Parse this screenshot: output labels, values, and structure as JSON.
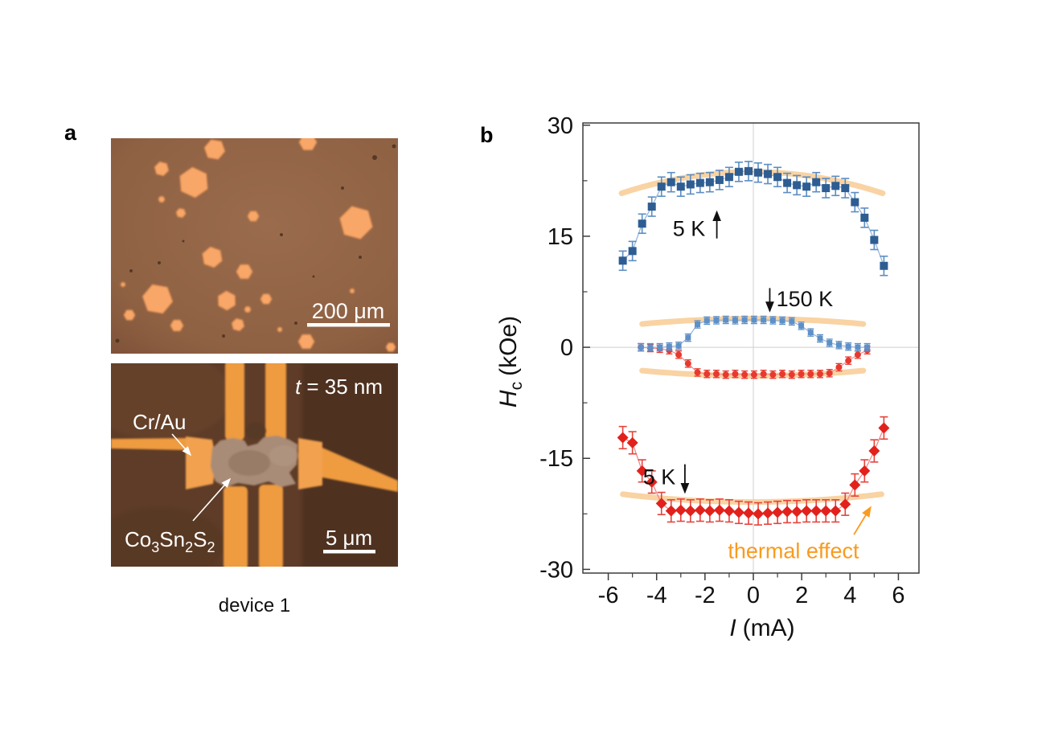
{
  "figure": {
    "panel_a_label": "a",
    "panel_b_label": "b",
    "caption": "device 1"
  },
  "panel_a": {
    "top_image": {
      "scale_bar_label": "200 μm",
      "background_color": "#96684a",
      "flake_color": "#f9a768",
      "flakes": [
        [
          129,
          14,
          13,
          10
        ],
        [
          245,
          5,
          11,
          0
        ],
        [
          63,
          38,
          9,
          15
        ],
        [
          103,
          55,
          19,
          25
        ],
        [
          63,
          76,
          4,
          0
        ],
        [
          87,
          93,
          6,
          10
        ],
        [
          177,
          97,
          7,
          0
        ],
        [
          305,
          105,
          21,
          15
        ],
        [
          126,
          148,
          13,
          20
        ],
        [
          166,
          166,
          10,
          0
        ],
        [
          58,
          200,
          19,
          10
        ],
        [
          144,
          202,
          12,
          28
        ],
        [
          193,
          200,
          7,
          0
        ],
        [
          23,
          220,
          7,
          0
        ],
        [
          82,
          233,
          8,
          0
        ],
        [
          158,
          232,
          8,
          15
        ],
        [
          170,
          213,
          4,
          0
        ],
        [
          243,
          253,
          10,
          0
        ],
        [
          15,
          182,
          3,
          0
        ],
        [
          348,
          260,
          6,
          0
        ],
        [
          300,
          190,
          3,
          0
        ],
        [
          210,
          238,
          3,
          0
        ]
      ],
      "dark_spots": [
        [
          328,
          24,
          3
        ],
        [
          288,
          62,
          2
        ],
        [
          212,
          120,
          2
        ],
        [
          25,
          165,
          2
        ],
        [
          60,
          155,
          2
        ],
        [
          230,
          230,
          2
        ],
        [
          252,
          172,
          1.5
        ],
        [
          310,
          148,
          2
        ],
        [
          90,
          128,
          1.5
        ],
        [
          140,
          246,
          2
        ],
        [
          8,
          252,
          2.5
        ],
        [
          352,
          10,
          2.5
        ]
      ]
    },
    "bottom_image": {
      "thickness": {
        "sym": "t",
        "rest": "= 35 nm"
      },
      "electrode_label": "Cr/Au",
      "material": {
        "p1": "Co",
        "s1": "3",
        "p2": "Sn",
        "s2": "2",
        "p3": "S",
        "s3": "2"
      },
      "scale_bar_label": "5 μm"
    }
  },
  "chart_data": {
    "type": "scatter",
    "title": "",
    "xlabel": "I (mA)",
    "ylabel": "Hc (kOe)",
    "xlabel_parts": {
      "sym": "I",
      "rest": "(mA)"
    },
    "ylabel_parts": {
      "sym": "H",
      "sub": "c",
      "rest": "(kOe)"
    },
    "xlim": [
      -7.05,
      6.85
    ],
    "ylim": [
      -30.5,
      30.3
    ],
    "x_major_ticks": [
      -6,
      -4,
      -2,
      0,
      2,
      4,
      6
    ],
    "x_minor_ticks": [
      -5,
      -3,
      -1,
      1,
      3,
      5
    ],
    "y_major_ticks": [
      30,
      15,
      0,
      -15,
      -30
    ],
    "y_minor_ticks": [
      22.5,
      7.5,
      -7.5,
      -22.5
    ],
    "gridlines": {
      "x": [
        0
      ],
      "y": [
        0
      ]
    },
    "grid_color": "#cfcfcf",
    "axis_color": "#3c3c3c",
    "series": [
      {
        "name": "150 K down-sweep",
        "marker": "circle-small",
        "color": "#e8392f",
        "line_color": "#f2908a",
        "err_color": "#e8392f",
        "err": 0.5,
        "x": [
          -4.65,
          -4.26,
          -3.87,
          -3.48,
          -3.09,
          -2.7,
          -2.31,
          -1.92,
          -1.53,
          -1.14,
          -0.75,
          -0.36,
          0.03,
          0.42,
          0.81,
          1.2,
          1.59,
          1.98,
          2.37,
          2.76,
          3.15,
          3.54,
          3.93,
          4.32,
          4.71
        ],
        "y": [
          0,
          -0.1,
          -0.2,
          -0.4,
          -1.0,
          -2.2,
          -3.4,
          -3.6,
          -3.6,
          -3.7,
          -3.6,
          -3.7,
          -3.7,
          -3.6,
          -3.7,
          -3.6,
          -3.7,
          -3.6,
          -3.6,
          -3.6,
          -3.5,
          -2.7,
          -1.8,
          -1.0,
          -0.4
        ]
      },
      {
        "name": "150 K up-sweep",
        "marker": "square-small",
        "color": "#5e90c8",
        "line_color": "#93b6dc",
        "err_color": "#5e90c8",
        "err": 0.5,
        "x": [
          -4.65,
          -4.26,
          -3.87,
          -3.48,
          -3.09,
          -2.7,
          -2.31,
          -1.92,
          -1.53,
          -1.14,
          -0.75,
          -0.36,
          0.03,
          0.42,
          0.81,
          1.2,
          1.59,
          1.98,
          2.37,
          2.76,
          3.15,
          3.54,
          3.93,
          4.32,
          4.71
        ],
        "y": [
          0,
          0,
          0,
          0.1,
          0.2,
          1.3,
          3.1,
          3.6,
          3.65,
          3.7,
          3.65,
          3.7,
          3.7,
          3.7,
          3.65,
          3.6,
          3.5,
          2.9,
          2.0,
          1.2,
          0.6,
          0.3,
          0.1,
          0,
          0
        ]
      },
      {
        "name": "5 K up-sweep",
        "marker": "square",
        "color": "#2e5d92",
        "line_color": "#93b6dc",
        "err_color": "#5c8dc2",
        "err": 1.3,
        "x": [
          -5.4,
          -5.0,
          -4.6,
          -4.2,
          -3.8,
          -3.4,
          -3.0,
          -2.6,
          -2.2,
          -1.8,
          -1.4,
          -1.0,
          -0.6,
          -0.2,
          0.2,
          0.6,
          1.0,
          1.4,
          1.8,
          2.2,
          2.6,
          3.0,
          3.4,
          3.8,
          4.2,
          4.6,
          5.0,
          5.4
        ],
        "y": [
          11.7,
          13.0,
          16.7,
          19.0,
          21.7,
          22.3,
          21.7,
          22.0,
          22.2,
          22.3,
          22.6,
          23.0,
          23.7,
          23.8,
          23.6,
          23.4,
          23.0,
          22.2,
          21.9,
          21.7,
          22.3,
          21.5,
          21.8,
          21.5,
          19.6,
          17.5,
          14.5,
          11.0
        ]
      },
      {
        "name": "5 K down-sweep",
        "marker": "diamond",
        "color": "#e2211c",
        "line_color": "#f08a86",
        "err_color": "#e5433c",
        "err": 1.5,
        "x": [
          -5.4,
          -5.0,
          -4.6,
          -4.2,
          -3.8,
          -3.4,
          -3.0,
          -2.6,
          -2.2,
          -1.8,
          -1.4,
          -1.0,
          -0.6,
          -0.2,
          0.2,
          0.6,
          1.0,
          1.4,
          1.8,
          2.2,
          2.6,
          3.0,
          3.4,
          3.8,
          4.2,
          4.6,
          5.0,
          5.4
        ],
        "y": [
          -12.2,
          -12.9,
          -16.7,
          -18.2,
          -21.1,
          -22.1,
          -22.0,
          -22.1,
          -22.0,
          -22.1,
          -22.0,
          -22.1,
          -22.3,
          -22.4,
          -22.5,
          -22.4,
          -22.3,
          -22.2,
          -22.2,
          -22.1,
          -22.1,
          -22.1,
          -22.1,
          -21.2,
          -18.6,
          -16.7,
          -14.0,
          -10.9
        ]
      }
    ],
    "thermal_bands": {
      "color": "#f8cf9b",
      "bands": [
        {
          "x0": -5.45,
          "x1": 5.35,
          "y_center": 23.7,
          "y_end": 20.8
        },
        {
          "x0": -4.6,
          "x1": 4.55,
          "y_center": 3.85,
          "y_end": 3.15
        },
        {
          "x0": -4.6,
          "x1": 4.55,
          "y_center": -3.85,
          "y_end": -3.15
        },
        {
          "x0": -5.4,
          "x1": 5.3,
          "y_center": -20.9,
          "y_end": -19.85
        }
      ]
    },
    "annotations": [
      {
        "id": "anno-5k-up",
        "text": "5 K",
        "color": "#111111",
        "tx": -2.66,
        "ty": 16.0,
        "anchor": "middle",
        "arrow": {
          "x1": -1.51,
          "y1": 14.7,
          "x2": -1.51,
          "y2": 18.3
        }
      },
      {
        "id": "anno-150k",
        "text": "150 K",
        "color": "#111111",
        "tx": 0.95,
        "ty": 6.5,
        "anchor": "start",
        "arrow": {
          "x1": 0.68,
          "y1": 8.0,
          "x2": 0.68,
          "y2": 4.9
        }
      },
      {
        "id": "anno-5k-down",
        "text": "5 K",
        "color": "#111111",
        "tx": -3.89,
        "ty": -17.5,
        "anchor": "middle",
        "arrow": {
          "x1": -2.83,
          "y1": -15.8,
          "x2": -2.83,
          "y2": -19.6
        }
      },
      {
        "id": "anno-thermal",
        "text": "thermal effect",
        "color": "#f99b20",
        "tx": 1.66,
        "ty": -27.5,
        "anchor": "middle",
        "arrow": {
          "x1": 4.16,
          "y1": -25.3,
          "x2": 4.85,
          "y2": -21.6
        }
      }
    ]
  }
}
